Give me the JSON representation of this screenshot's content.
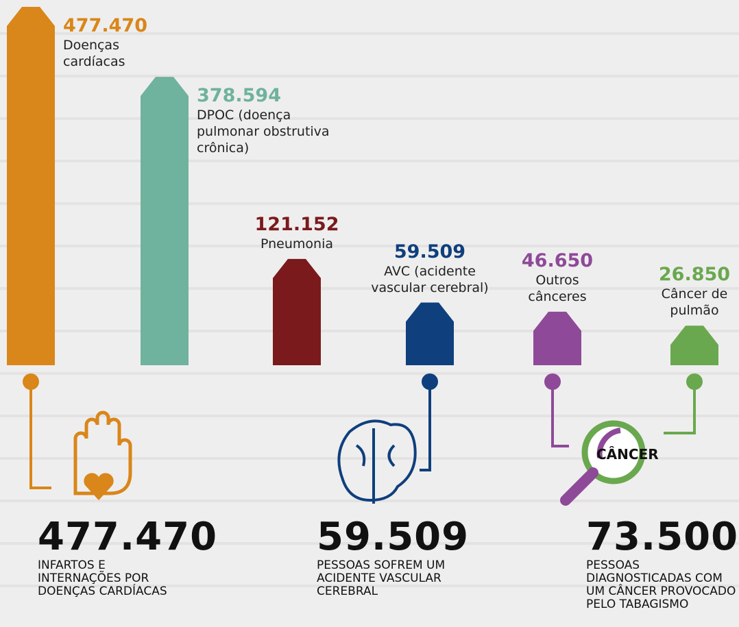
{
  "chart_data": {
    "type": "bar",
    "categories": [
      "Doenças cardíacas",
      "DPOC (doença pulmonar obstrutiva crônica)",
      "Pneumonia",
      "AVC (acidente vascular cerebral)",
      "Outros cânceres",
      "Câncer de pulmão"
    ],
    "values": [
      477470,
      378594,
      121152,
      59509,
      46650,
      26850
    ],
    "value_labels": [
      "477.470",
      "378.594",
      "121.152",
      "59.509",
      "46.650",
      "26.850"
    ],
    "colors": [
      "#d9861a",
      "#6fb29e",
      "#7a1a1c",
      "#0f3f7d",
      "#8e4a98",
      "#6aa84f"
    ]
  },
  "highlights": [
    {
      "value": 477470,
      "value_label": "477.470",
      "text": "INFARTOS E INTERNAÇÕES POR DOENÇAS CARDÍACAS"
    },
    {
      "value": 59509,
      "value_label": "59.509",
      "text": "PESSOAS SOFREM UM ACIDENTE VASCULAR CEREBRAL"
    },
    {
      "value": 73500,
      "value_label": "73.500",
      "text": "PESSOAS DIAGNOSTICADAS COM UM CÂNCER PROVOCADO PELO TABAGISMO"
    }
  ],
  "icon_text": "CÂNCER"
}
